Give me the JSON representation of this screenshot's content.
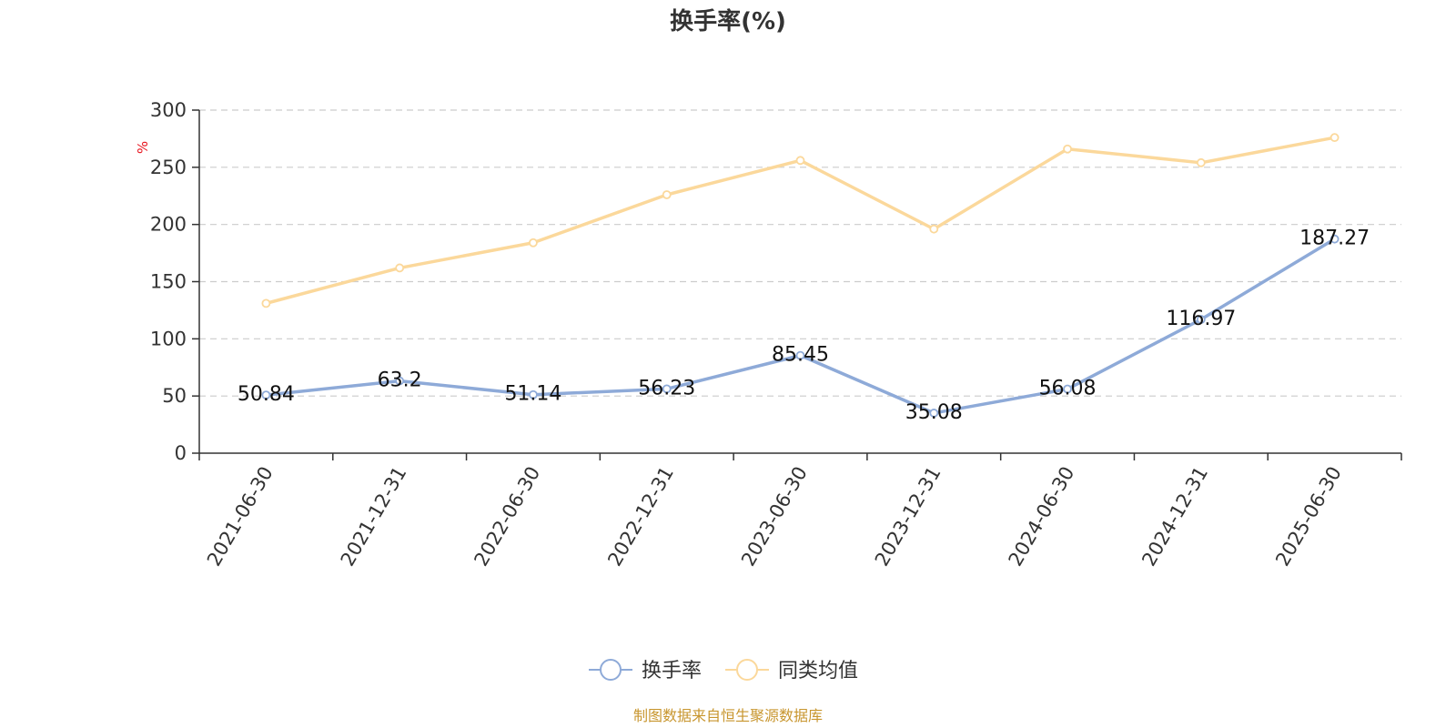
{
  "chart_data": {
    "type": "line",
    "title": "换手率(%)",
    "ylabel": "%",
    "xlabel": "",
    "categories": [
      "2021-06-30",
      "2021-12-31",
      "2022-06-30",
      "2022-12-31",
      "2023-06-30",
      "2023-12-31",
      "2024-06-30",
      "2024-12-31",
      "2025-06-30"
    ],
    "ylim": [
      0,
      300
    ],
    "yticks": [
      0,
      50,
      100,
      150,
      200,
      250,
      300
    ],
    "grid": true,
    "legend_position": "bottom-center",
    "series": [
      {
        "name": "换手率",
        "color": "#8eaad8",
        "show_labels": true,
        "values": [
          50.84,
          63.2,
          51.14,
          56.23,
          85.45,
          35.08,
          56.08,
          116.97,
          187.27
        ]
      },
      {
        "name": "同类均值",
        "color": "#fbd89b",
        "show_labels": false,
        "values": [
          131,
          162,
          184,
          226,
          256,
          196,
          266,
          254,
          276
        ]
      }
    ]
  },
  "footer": {
    "source": "制图数据来自恒生聚源数据库"
  }
}
